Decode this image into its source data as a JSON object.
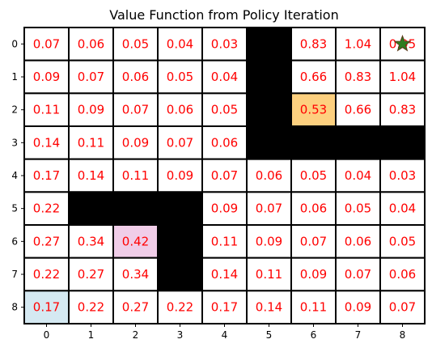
{
  "chart_data": {
    "type": "heatmap",
    "title": "Value Function from Policy Iteration",
    "xlabel": "",
    "ylabel": "",
    "x_ticks": [
      "0",
      "1",
      "2",
      "3",
      "4",
      "5",
      "6",
      "7",
      "8"
    ],
    "y_ticks": [
      "0",
      "1",
      "2",
      "3",
      "4",
      "5",
      "6",
      "7",
      "8"
    ],
    "rows": [
      [
        "0.07",
        "0.06",
        "0.05",
        "0.04",
        "0.03",
        null,
        "0.83",
        "1.04",
        "0.95"
      ],
      [
        "0.09",
        "0.07",
        "0.06",
        "0.05",
        "0.04",
        null,
        "0.66",
        "0.83",
        "1.04"
      ],
      [
        "0.11",
        "0.09",
        "0.07",
        "0.06",
        "0.05",
        null,
        "0.53",
        "0.66",
        "0.83"
      ],
      [
        "0.14",
        "0.11",
        "0.09",
        "0.07",
        "0.06",
        null,
        null,
        null,
        null
      ],
      [
        "0.17",
        "0.14",
        "0.11",
        "0.09",
        "0.07",
        "0.06",
        "0.05",
        "0.04",
        "0.03"
      ],
      [
        "0.22",
        null,
        null,
        null,
        "0.09",
        "0.07",
        "0.06",
        "0.05",
        "0.04"
      ],
      [
        "0.27",
        "0.34",
        "0.42",
        null,
        "0.11",
        "0.09",
        "0.07",
        "0.06",
        "0.05"
      ],
      [
        "0.22",
        "0.27",
        "0.34",
        null,
        "0.14",
        "0.11",
        "0.09",
        "0.07",
        "0.06"
      ],
      [
        "0.17",
        "0.22",
        "0.27",
        "0.22",
        "0.17",
        "0.14",
        "0.11",
        "0.09",
        "0.07"
      ]
    ],
    "highlighted_cells": [
      {
        "row": 2,
        "col": 6,
        "color": "#FDD07F"
      },
      {
        "row": 6,
        "col": 2,
        "color": "#F0CDE8"
      },
      {
        "row": 8,
        "col": 0,
        "color": "#D5E9F2"
      }
    ],
    "goal_marker": {
      "row": 0,
      "col": 8,
      "icon": "star-icon",
      "fill": "#2e7d1f",
      "stroke": "#5b3a1a"
    },
    "colors": {
      "wall": "#000000",
      "empty": "#ffffff",
      "grid_line": "#000000",
      "value_text": "#ff0000"
    },
    "grid": true,
    "legend": "none"
  }
}
